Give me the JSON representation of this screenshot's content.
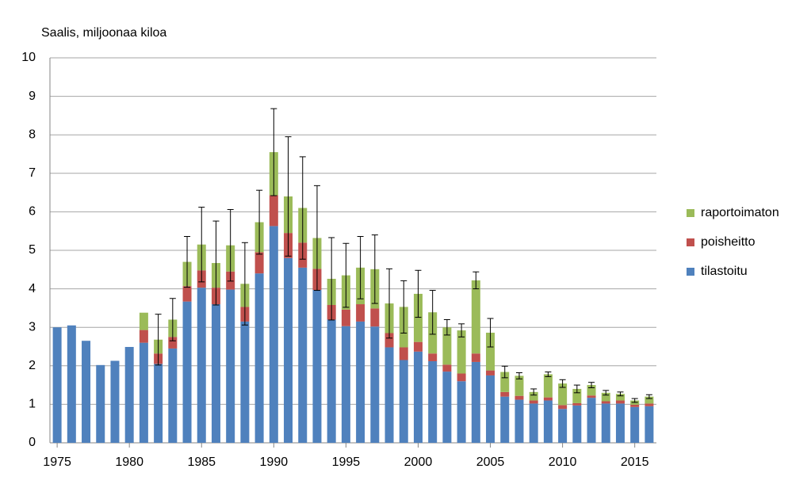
{
  "chart_data": {
    "type": "stacked-bar",
    "title": "Saalis, miljoonaa kiloa",
    "x": [
      1975,
      1976,
      1977,
      1978,
      1979,
      1980,
      1981,
      1982,
      1983,
      1984,
      1985,
      1986,
      1987,
      1988,
      1989,
      1990,
      1991,
      1992,
      1993,
      1994,
      1995,
      1996,
      1997,
      1998,
      1999,
      2000,
      2001,
      2002,
      2003,
      2004,
      2005,
      2006,
      2007,
      2008,
      2009,
      2010,
      2011,
      2012,
      2013,
      2014,
      2015,
      2016
    ],
    "xlim": [
      1974.5,
      2016.5
    ],
    "xticks": [
      1975,
      1980,
      1985,
      1990,
      1995,
      2000,
      2005,
      2010,
      2015
    ],
    "ylim": [
      0,
      10
    ],
    "yticks": [
      0,
      1,
      2,
      3,
      4,
      5,
      6,
      7,
      8,
      9,
      10
    ],
    "grid": true,
    "legend": "right",
    "series": [
      {
        "name": "tilastoitu",
        "color": "#4f81bd",
        "values": [
          3.0,
          3.05,
          2.65,
          2.02,
          2.13,
          2.49,
          2.6,
          2.05,
          2.45,
          3.67,
          4.03,
          3.6,
          3.98,
          3.15,
          4.4,
          5.63,
          4.8,
          4.55,
          3.97,
          3.2,
          3.03,
          3.15,
          3.02,
          2.48,
          2.15,
          2.37,
          2.12,
          1.85,
          1.6,
          2.1,
          1.75,
          1.2,
          1.12,
          1.02,
          1.1,
          0.88,
          0.97,
          1.17,
          1.02,
          1.02,
          0.93,
          0.95
        ]
      },
      {
        "name": "poisheitto",
        "color": "#c0504d",
        "values": [
          null,
          null,
          null,
          null,
          null,
          null,
          0.33,
          0.27,
          0.3,
          0.4,
          0.45,
          0.43,
          0.47,
          0.38,
          0.55,
          0.8,
          0.65,
          0.65,
          0.55,
          0.38,
          0.43,
          0.45,
          0.47,
          0.37,
          0.33,
          0.25,
          0.2,
          0.18,
          0.2,
          0.22,
          0.13,
          0.12,
          0.1,
          0.08,
          0.08,
          0.1,
          0.06,
          0.06,
          0.06,
          0.08,
          0.06,
          0.07
        ]
      },
      {
        "name": "raportoimaton",
        "color": "#9bbb59",
        "values": [
          null,
          null,
          null,
          null,
          null,
          null,
          0.45,
          0.36,
          0.45,
          0.63,
          0.67,
          0.64,
          0.68,
          0.6,
          0.78,
          1.12,
          0.95,
          0.9,
          0.8,
          0.68,
          0.89,
          0.95,
          1.02,
          0.77,
          1.05,
          1.25,
          1.07,
          0.97,
          1.12,
          1.9,
          0.98,
          0.52,
          0.52,
          0.22,
          0.6,
          0.56,
          0.37,
          0.27,
          0.22,
          0.17,
          0.11,
          0.18
        ],
        "errors": [
          null,
          null,
          null,
          null,
          null,
          null,
          null,
          0.66,
          0.55,
          0.66,
          0.97,
          1.09,
          0.93,
          1.07,
          0.83,
          1.13,
          1.55,
          1.33,
          1.36,
          1.07,
          0.83,
          0.81,
          0.89,
          0.9,
          0.68,
          0.61,
          0.57,
          0.2,
          0.17,
          0.22,
          0.37,
          0.15,
          0.08,
          0.08,
          0.06,
          0.1,
          0.1,
          0.07,
          0.06,
          0.05,
          0.05,
          0.05
        ]
      }
    ]
  }
}
